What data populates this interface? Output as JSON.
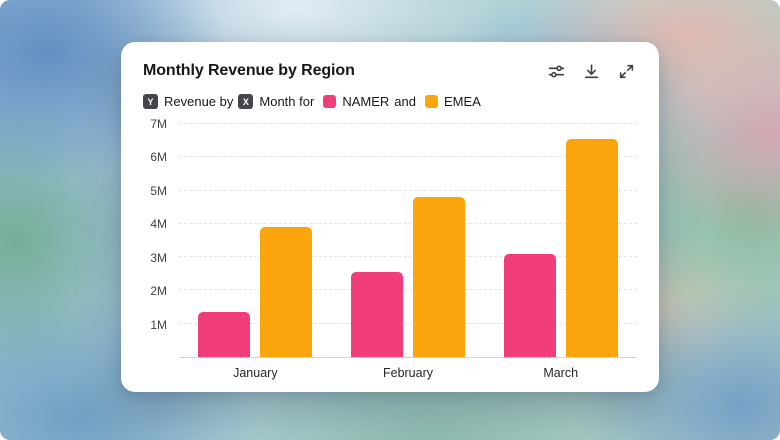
{
  "card": {
    "title": "Monthly Revenue by Region",
    "toolbar_icons": [
      "sliders-icon",
      "download-icon",
      "expand-icon"
    ]
  },
  "subtitle": {
    "y_badge": "Y",
    "y_label": "Revenue by",
    "x_badge": "X",
    "x_label": "Month for",
    "series1": "NAMER",
    "join": "and",
    "series2": "EMEA"
  },
  "colors": {
    "namer": "#F23D7B",
    "emea": "#F9A50B",
    "badge": "#43464B"
  },
  "chart_data": {
    "type": "bar",
    "title": "Monthly Revenue by Region",
    "categories": [
      "January",
      "February",
      "March"
    ],
    "series": [
      {
        "name": "NAMER",
        "color": "#F23D7B",
        "values": [
          1.35,
          2.55,
          3.1
        ]
      },
      {
        "name": "EMEA",
        "color": "#F9A50B",
        "values": [
          3.9,
          4.8,
          6.55
        ]
      }
    ],
    "xlabel": "Month",
    "ylabel": "Revenue",
    "ylim": [
      0,
      7
    ],
    "yticks": [
      "1M",
      "2M",
      "3M",
      "4M",
      "5M",
      "6M",
      "7M"
    ],
    "grid": "horizontal-dashed",
    "legend_position": "inline-subtitle"
  }
}
